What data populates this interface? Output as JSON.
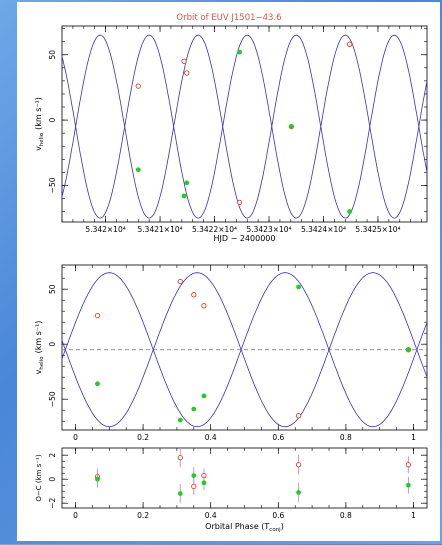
{
  "colors": {
    "background": "#5b95e0",
    "curve": "#3333bb",
    "primary_point": "#22cc22",
    "secondary_point": "#dd4422",
    "title": "#e0504a",
    "errorbar": "#cc88cc"
  },
  "chart_data": [
    {
      "type": "scatter",
      "title": "Orbit of EUV J1501−43.6",
      "xlabel": "HJD − 2400000",
      "ylabel": "v",
      "ylabel_sub": "helio",
      "ylabel_unit": "(km s⁻¹)",
      "xlim": [
        53419.2,
        53425.9
      ],
      "ylim": [
        -78,
        72
      ],
      "xtick_labels": [
        "5.342×10⁴",
        "5.3421×10⁴",
        "5.3422×10⁴",
        "5.3423×10⁴",
        "5.3424×10⁴",
        "5.3425×10⁴"
      ],
      "ytick_labels": [
        "50",
        "0",
        "−50"
      ],
      "series": [
        {
          "x": [
            53420.6,
            53421.44,
            53421.49,
            53422.46,
            53423.41,
            53424.48
          ],
          "y": [
            -38,
            -58,
            -48,
            52,
            -5,
            -70
          ]
        },
        {
          "x": [
            53420.6,
            53421.44,
            53421.49,
            53422.46,
            53423.41,
            53424.48
          ],
          "y": [
            26,
            45,
            36,
            -63,
            -5,
            58
          ]
        }
      ]
    },
    {
      "type": "scatter",
      "ylabel": "v",
      "ylabel_sub": "helio",
      "ylabel_unit": "(km s⁻¹)",
      "xlim": [
        -0.04,
        1.04
      ],
      "ylim": [
        -78,
        72
      ],
      "gamma": -5,
      "xtick_labels": [
        "0",
        "0.2",
        "0.4",
        "0.6",
        "0.8",
        "1"
      ],
      "ytick_labels": [
        "50",
        "0",
        "−50"
      ],
      "series": [
        {
          "x": [
            0.065,
            0.31,
            0.35,
            0.38,
            0.66,
            0.985
          ],
          "y": [
            -36,
            -69,
            -59,
            -47,
            52,
            -5
          ]
        },
        {
          "x": [
            0.065,
            0.31,
            0.35,
            0.38,
            0.66,
            0.985
          ],
          "y": [
            26,
            57,
            45,
            35,
            -65,
            -5
          ]
        }
      ]
    },
    {
      "type": "scatter",
      "xlabel": "Orbital Phase (T",
      "xlabel_sub": "conj",
      "xlabel_tail": ")",
      "ylabel": "O−C (km s⁻¹)",
      "xlim": [
        -0.04,
        1.04
      ],
      "ylim": [
        -2.4,
        2.6
      ],
      "xtick_labels": [
        "0",
        "0.2",
        "0.4",
        "0.6",
        "0.8",
        "1"
      ],
      "ytick_labels": [
        "2",
        "0",
        "−2"
      ],
      "series": [
        {
          "x": [
            0.065,
            0.31,
            0.35,
            0.38,
            0.66,
            0.985
          ],
          "y": [
            0.0,
            -1.2,
            0.3,
            -0.3,
            -1.1,
            -0.5
          ],
          "err": [
            0.7,
            0.8,
            0.7,
            0.6,
            0.8,
            0.7
          ]
        },
        {
          "x": [
            0.065,
            0.31,
            0.35,
            0.38,
            0.66,
            0.985
          ],
          "y": [
            0.2,
            1.8,
            -0.6,
            0.3,
            1.2,
            1.2
          ],
          "err": [
            0.7,
            0.8,
            0.7,
            0.6,
            0.8,
            0.7
          ]
        }
      ]
    }
  ]
}
